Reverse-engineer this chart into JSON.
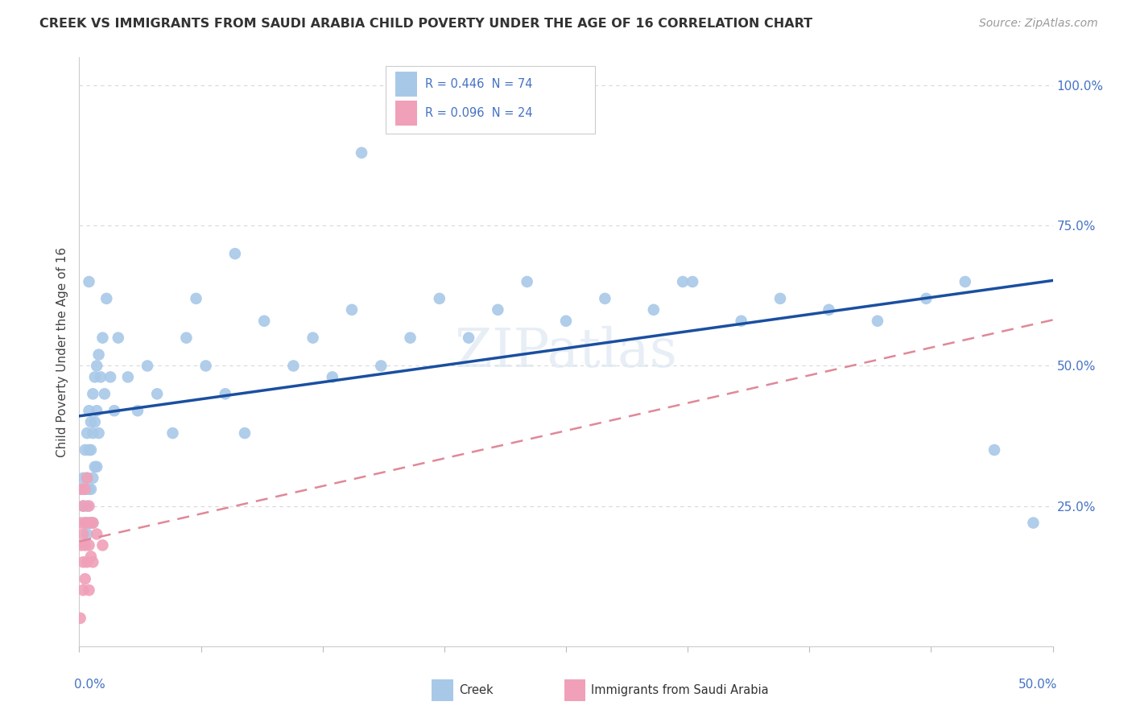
{
  "title": "CREEK VS IMMIGRANTS FROM SAUDI ARABIA CHILD POVERTY UNDER THE AGE OF 16 CORRELATION CHART",
  "source": "Source: ZipAtlas.com",
  "ylabel": "Child Poverty Under the Age of 16",
  "xlim": [
    0.0,
    0.5
  ],
  "ylim": [
    0.0,
    1.05
  ],
  "y_ticks": [
    0.0,
    0.25,
    0.5,
    0.75,
    1.0
  ],
  "y_tick_labels": [
    "",
    "25.0%",
    "50.0%",
    "75.0%",
    "100.0%"
  ],
  "legend_r1": "R = 0.446  N = 74",
  "legend_r2": "R = 0.096  N = 24",
  "creek_color": "#a8c8e8",
  "saudi_color": "#f0a0b8",
  "creek_line_color": "#1a4fa0",
  "saudi_line_color": "#e08898",
  "background_color": "#ffffff",
  "grid_color": "#d8d8d8",
  "watermark": "ZIPatlas",
  "blue_text_color": "#4472c4",
  "title_color": "#333333",
  "label_color": "#444444",
  "creek_x": [
    0.001,
    0.002,
    0.002,
    0.003,
    0.003,
    0.003,
    0.004,
    0.004,
    0.004,
    0.004,
    0.005,
    0.005,
    0.005,
    0.005,
    0.005,
    0.006,
    0.006,
    0.006,
    0.006,
    0.007,
    0.007,
    0.007,
    0.007,
    0.008,
    0.008,
    0.008,
    0.009,
    0.009,
    0.009,
    0.01,
    0.01,
    0.011,
    0.012,
    0.013,
    0.014,
    0.016,
    0.018,
    0.02,
    0.025,
    0.03,
    0.035,
    0.04,
    0.048,
    0.055,
    0.065,
    0.075,
    0.085,
    0.095,
    0.11,
    0.12,
    0.13,
    0.14,
    0.155,
    0.17,
    0.185,
    0.2,
    0.215,
    0.23,
    0.25,
    0.27,
    0.295,
    0.315,
    0.34,
    0.36,
    0.385,
    0.41,
    0.435,
    0.455,
    0.47,
    0.49,
    0.145,
    0.06,
    0.08,
    0.31
  ],
  "creek_y": [
    0.28,
    0.3,
    0.25,
    0.35,
    0.28,
    0.22,
    0.38,
    0.3,
    0.25,
    0.2,
    0.42,
    0.35,
    0.28,
    0.22,
    0.65,
    0.4,
    0.35,
    0.28,
    0.22,
    0.45,
    0.38,
    0.3,
    0.22,
    0.48,
    0.4,
    0.32,
    0.5,
    0.42,
    0.32,
    0.52,
    0.38,
    0.48,
    0.55,
    0.45,
    0.62,
    0.48,
    0.42,
    0.55,
    0.48,
    0.42,
    0.5,
    0.45,
    0.38,
    0.55,
    0.5,
    0.45,
    0.38,
    0.58,
    0.5,
    0.55,
    0.48,
    0.6,
    0.5,
    0.55,
    0.62,
    0.55,
    0.6,
    0.65,
    0.58,
    0.62,
    0.6,
    0.65,
    0.58,
    0.62,
    0.6,
    0.58,
    0.62,
    0.65,
    0.35,
    0.22,
    0.88,
    0.62,
    0.7,
    0.65
  ],
  "saudi_x": [
    0.0005,
    0.001,
    0.001,
    0.001,
    0.002,
    0.002,
    0.002,
    0.002,
    0.003,
    0.003,
    0.003,
    0.003,
    0.004,
    0.004,
    0.004,
    0.005,
    0.005,
    0.005,
    0.006,
    0.006,
    0.007,
    0.007,
    0.009,
    0.012
  ],
  "saudi_y": [
    0.05,
    0.22,
    0.18,
    0.28,
    0.2,
    0.15,
    0.25,
    0.1,
    0.28,
    0.22,
    0.18,
    0.12,
    0.3,
    0.22,
    0.15,
    0.25,
    0.18,
    0.1,
    0.22,
    0.16,
    0.22,
    0.15,
    0.2,
    0.18
  ]
}
